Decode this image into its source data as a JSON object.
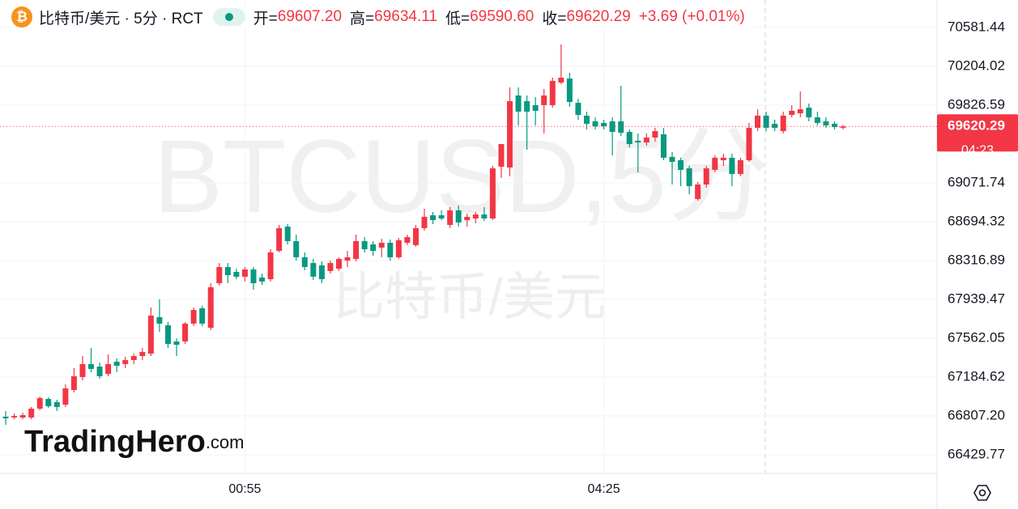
{
  "header": {
    "symbol": "比特币/美元 · 5分 · RCT",
    "open_label": "开=",
    "open": "69607.20",
    "high_label": "高=",
    "high": "69634.11",
    "low_label": "低=",
    "low": "69590.60",
    "close_label": "收=",
    "close": "69620.29",
    "change": "+3.69 (+0.01%)"
  },
  "watermark": {
    "ticker": "BTCUSD,5分",
    "name": "比特币/美元"
  },
  "logo": {
    "name": "TradingHero",
    "domain": ".com"
  },
  "chart_data": {
    "type": "candlestick",
    "up_color": "#f23645",
    "down_color": "#089981",
    "ylim": [
      66248.92,
      70848.78
    ],
    "yticks": [
      66429.77,
      {
        "value": 66807.2,
        "label": "66807.20"
      },
      67184.62,
      67562.05,
      67939.47,
      68316.89,
      68694.32,
      69071.74,
      69826.59,
      70204.02,
      70581.44
    ],
    "grid": true,
    "countdown": "04:23",
    "categories": [
      null,
      null,
      null,
      null,
      null,
      null,
      null,
      null,
      null,
      null,
      null,
      null,
      null,
      null,
      null,
      null,
      null,
      null,
      null,
      null,
      null,
      null,
      null,
      null,
      null,
      null,
      null,
      null,
      "00:55",
      null,
      null,
      null,
      null,
      null,
      null,
      null,
      null,
      null,
      null,
      null,
      null,
      null,
      null,
      null,
      null,
      null,
      null,
      null,
      null,
      null,
      null,
      null,
      null,
      null,
      null,
      null,
      null,
      null,
      null,
      null,
      null,
      null,
      null,
      null,
      null,
      null,
      null,
      null,
      null,
      null,
      "04:25",
      null,
      null,
      null,
      null,
      null,
      null,
      null,
      null,
      null,
      null,
      null,
      null,
      null,
      null,
      null,
      null,
      null,
      null,
      null,
      null,
      null,
      null,
      null,
      null,
      null,
      null,
      null,
      null
    ],
    "open": [
      66800,
      66792,
      66792,
      66792,
      66878,
      66972,
      66941,
      66917,
      67059,
      67185,
      67311,
      67287,
      67216,
      67334,
      67311,
      67350,
      67389,
      67413,
      67767,
      67688,
      67531,
      67531,
      67704,
      67853,
      67664,
      68097,
      68254,
      68207,
      68160,
      68231,
      68152,
      68136,
      68411,
      68647,
      68506,
      68349,
      68293,
      68270,
      68215,
      68238,
      68317,
      68333,
      68506,
      68474,
      68443,
      68490,
      68349,
      68490,
      68467,
      68632,
      68757,
      68757,
      68663,
      68805,
      68710,
      68726,
      68765,
      68726,
      69229,
      69221,
      69921,
      69866,
      69827,
      69827,
      69827,
      70047,
      70086,
      69850,
      69725,
      69670,
      69654,
      69670,
      69670,
      69567,
      69481,
      69465,
      69512,
      69544,
      69324,
      69292,
      69213,
      68915,
      69056,
      69198,
      69292,
      69316,
      69158,
      69292,
      69607,
      69725,
      69646,
      69575,
      69732,
      69748,
      69803,
      69709,
      69670,
      69646,
      69607.2
    ],
    "high": [
      66855,
      66831,
      66839,
      66894,
      66996,
      66988,
      66965,
      67114,
      67271,
      67389,
      67468,
      67326,
      67405,
      67366,
      67381,
      67413,
      67468,
      67861,
      67940,
      67719,
      67562,
      67719,
      67861,
      67877,
      68097,
      68293,
      68293,
      68238,
      68254,
      68254,
      68191,
      68427,
      68663,
      68671,
      68569,
      68396,
      68333,
      68309,
      68317,
      68349,
      68411,
      68569,
      68545,
      68506,
      68529,
      68522,
      68537,
      68569,
      68663,
      68820,
      68789,
      68805,
      68836,
      68852,
      68773,
      68789,
      68836,
      69237,
      69449,
      70000,
      70000,
      69921,
      69905,
      69984,
      70094,
      70417,
      70141,
      69890,
      69764,
      69709,
      69685,
      69709,
      70015,
      69591,
      69552,
      69552,
      69607,
      69607,
      69371,
      69316,
      69237,
      69080,
      69237,
      69339,
      69355,
      69355,
      69316,
      69654,
      69787,
      69764,
      69685,
      69764,
      69827,
      69960,
      69843,
      69764,
      69709,
      69670,
      69634.11
    ],
    "low": [
      66721,
      66776,
      66776,
      66776,
      66862,
      66886,
      66855,
      66894,
      67036,
      67153,
      67232,
      67169,
      67193,
      67232,
      67271,
      67311,
      67350,
      67389,
      67625,
      67468,
      67389,
      67507,
      67680,
      67680,
      67641,
      68073,
      68097,
      68136,
      68113,
      68034,
      68081,
      68113,
      68396,
      68474,
      68317,
      68223,
      68128,
      68097,
      68191,
      68215,
      68254,
      68309,
      68396,
      68364,
      68349,
      68317,
      68333,
      68467,
      68451,
      68608,
      68671,
      68710,
      68632,
      68647,
      68647,
      68679,
      68702,
      68710,
      69119,
      69135,
      69630,
      69394,
      69630,
      69552,
      69803,
      70031,
      69811,
      69685,
      69591,
      69591,
      69591,
      69339,
      69528,
      69418,
      69174,
      69434,
      69473,
      69292,
      69056,
      69040,
      68962,
      68899,
      69025,
      69174,
      69237,
      69040,
      69135,
      69276,
      69575,
      69575,
      69575,
      69552,
      69709,
      69709,
      69670,
      69630,
      69607,
      69591,
      69590.6
    ],
    "close": [
      66784,
      66807,
      66815,
      66878,
      66981,
      66902,
      66894,
      67075,
      67193,
      67311,
      67264,
      67193,
      67311,
      67295,
      67350,
      67389,
      67429,
      67782,
      67704,
      67507,
      67499,
      67704,
      67837,
      67704,
      68058,
      68254,
      68175,
      68160,
      68231,
      68097,
      68113,
      68396,
      68632,
      68506,
      68349,
      68254,
      68160,
      68136,
      68293,
      68333,
      68349,
      68506,
      68427,
      68411,
      68490,
      68349,
      68514,
      68545,
      68632,
      68742,
      68710,
      68726,
      68805,
      68687,
      68742,
      68765,
      68726,
      69213,
      69449,
      69866,
      69764,
      69764,
      69772,
      69921,
      70063,
      70094,
      69858,
      69732,
      69646,
      69622,
      69622,
      69567,
      69559,
      69449,
      69465,
      69512,
      69575,
      69316,
      69276,
      69198,
      69040,
      69056,
      69213,
      69316,
      69316,
      69158,
      69292,
      69607,
      69725,
      69607,
      69607,
      69725,
      69772,
      69787,
      69709,
      69654,
      69630,
      69614,
      69620.29
    ]
  }
}
